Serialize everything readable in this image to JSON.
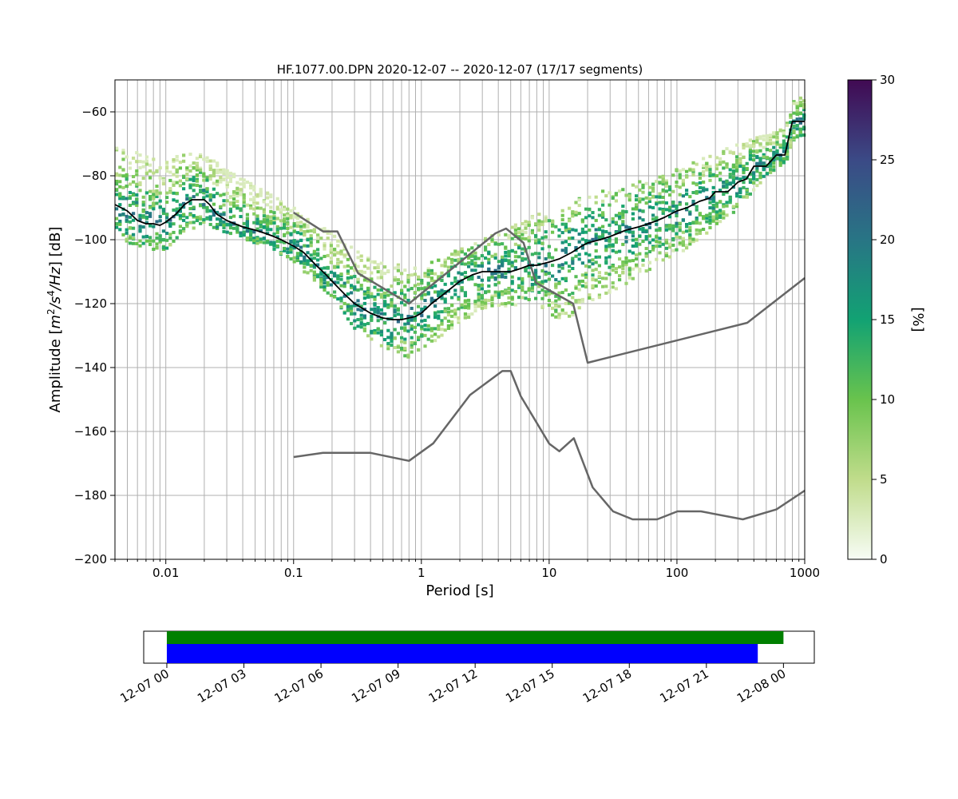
{
  "chart_data": [
    {
      "type": "heatmap",
      "subtype": "probabilistic-power-spectral-density",
      "title": "HF.1077.00.DPN   2020-12-07 -- 2020-12-07  (17/17 segments)",
      "xlabel": "Period [s]",
      "ylabel": "Amplitude [m²/s⁴/Hz] [dB]",
      "x_scale": "log",
      "xlim": [
        0.004,
        1000
      ],
      "ylim": [
        -200,
        -50
      ],
      "x_tick_labels": [
        "0.01",
        "0.1",
        "1",
        "10",
        "100",
        "1000"
      ],
      "x_ticks": [
        0.01,
        0.1,
        1,
        10,
        100,
        1000
      ],
      "y_ticks": [
        -200,
        -180,
        -160,
        -140,
        -120,
        -100,
        -80,
        -60
      ],
      "y_tick_labels": [
        "−200",
        "−180",
        "−160",
        "−140",
        "−120",
        "−100",
        "−80",
        "−60"
      ],
      "grid": true,
      "colorbar": {
        "label": "[%]",
        "range": [
          0,
          30
        ],
        "ticks": [
          0,
          5,
          10,
          15,
          20,
          25,
          30
        ],
        "tick_labels": [
          "0",
          "5",
          "10",
          "15",
          "20",
          "25",
          "30"
        ],
        "colormap": [
          "#f7fcf5",
          "#c0dc8b",
          "#69c34d",
          "#12a273",
          "#287585",
          "#3b4a86",
          "#410a53"
        ]
      },
      "series": [
        {
          "name": "",
          "role": "mean",
          "color": "#000000",
          "x": [
            0.004,
            0.005,
            0.006,
            0.007,
            0.008,
            0.009,
            0.01,
            0.012,
            0.014,
            0.016,
            0.018,
            0.02,
            0.022,
            0.025,
            0.03,
            0.04,
            0.05,
            0.06,
            0.07,
            0.08,
            0.1,
            0.12,
            0.15,
            0.18,
            0.2,
            0.25,
            0.3,
            0.4,
            0.5,
            0.6,
            0.7,
            0.8,
            0.9,
            1.0,
            1.2,
            1.5,
            2.0,
            2.5,
            3.0,
            4.0,
            5.0,
            6.0,
            7.0,
            8.0,
            10,
            12,
            15,
            18,
            20,
            25,
            30,
            40,
            50,
            60,
            70,
            80,
            100,
            120,
            150,
            180,
            200,
            250,
            300,
            350,
            400,
            500,
            600,
            700,
            800,
            1000
          ],
          "y": [
            -89,
            -91,
            -94,
            -95,
            -95,
            -95.5,
            -94.5,
            -92,
            -89,
            -87.5,
            -87.5,
            -87.5,
            -89,
            -92,
            -94,
            -96,
            -97,
            -98,
            -99,
            -100,
            -102,
            -104,
            -108,
            -111,
            -113,
            -117,
            -120,
            -123,
            -124.5,
            -125,
            -125,
            -124.5,
            -124,
            -123,
            -120,
            -117,
            -113,
            -111,
            -110,
            -110,
            -110,
            -109,
            -108,
            -108,
            -107,
            -106,
            -104,
            -102,
            -101,
            -100,
            -99,
            -97,
            -96,
            -95,
            -94,
            -93,
            -91,
            -90,
            -88,
            -87,
            -85,
            -85,
            -82,
            -81,
            -77,
            -77,
            -73.5,
            -73.5,
            -63,
            -63
          ]
        }
      ],
      "noise_models": [
        {
          "name": "",
          "role": "high-noise-model",
          "color": "#666666",
          "x": [
            0.1,
            0.17,
            0.22,
            0.32,
            0.8,
            3.8,
            4.6,
            6.3,
            7.9,
            15.4,
            20,
            354.8,
            1000
          ],
          "y": [
            -91.5,
            -97.4,
            -97.4,
            -110.5,
            -120,
            -98,
            -96.5,
            -101,
            -113.5,
            -120,
            -138.5,
            -126,
            -112
          ]
        },
        {
          "name": "",
          "role": "low-noise-model",
          "color": "#666666",
          "x": [
            0.1,
            0.17,
            0.4,
            0.8,
            1.24,
            2.4,
            4.3,
            5.0,
            6.0,
            10,
            12,
            15.6,
            21.9,
            31.6,
            45,
            70,
            101,
            154,
            328,
            600,
            1000
          ],
          "y": [
            -168,
            -166.7,
            -166.7,
            -169.2,
            -163.7,
            -148.6,
            -141.1,
            -141.1,
            -149,
            -163.8,
            -166.2,
            -162.1,
            -177.5,
            -185,
            -187.5,
            -187.5,
            -185,
            -185,
            -187.5,
            -184.4,
            -178.5
          ]
        }
      ],
      "probability_bands": [
        {
          "role": "upper envelope",
          "x": [
            0.004,
            0.006,
            0.01,
            0.015,
            0.02,
            0.03,
            0.05,
            0.1,
            0.2,
            0.3,
            0.5,
            0.8,
            1.0,
            2.0,
            3.0,
            5.0,
            8.0,
            10,
            20,
            50,
            100,
            200,
            300,
            500,
            700,
            800,
            1000
          ],
          "y": [
            -70,
            -72,
            -75,
            -72.5,
            -73,
            -78,
            -83,
            -90,
            -98,
            -103,
            -107,
            -108,
            -108,
            -103,
            -100,
            -96,
            -92,
            -90,
            -86,
            -82,
            -78,
            -73,
            -70,
            -67,
            -65,
            -57,
            -55
          ]
        },
        {
          "role": "lower envelope",
          "x": [
            0.004,
            0.006,
            0.01,
            0.015,
            0.02,
            0.03,
            0.05,
            0.1,
            0.2,
            0.3,
            0.5,
            0.8,
            1.0,
            2.0,
            3.0,
            5.0,
            8.0,
            10,
            12,
            15,
            20,
            50,
            100,
            200,
            300,
            500,
            700,
            800,
            1000
          ],
          "y": [
            -98,
            -103,
            -103,
            -98,
            -95,
            -98,
            -101,
            -107,
            -118,
            -128,
            -134,
            -137,
            -135,
            -126,
            -122,
            -121,
            -120,
            -123,
            -125,
            -124,
            -120,
            -112,
            -105,
            -96,
            -91,
            -80,
            -78,
            -70,
            -68
          ]
        }
      ]
    },
    {
      "type": "timeline",
      "x_tick_labels": [
        "12-07 00",
        "12-07 03",
        "12-07 06",
        "12-07 09",
        "12-07 12",
        "12-07 15",
        "12-07 18",
        "12-07 21",
        "12-08 00"
      ],
      "xlim": [
        "2020-12-06 23:06",
        "2020-12-08 01:12"
      ],
      "bars": [
        {
          "name": "",
          "color": "#008000",
          "start": "2020-12-07 00:00",
          "end": "2020-12-08 00:00"
        },
        {
          "name": "",
          "color": "#0000ff",
          "start": "2020-12-07 00:00",
          "end": "2020-12-07 23:00"
        }
      ]
    }
  ]
}
